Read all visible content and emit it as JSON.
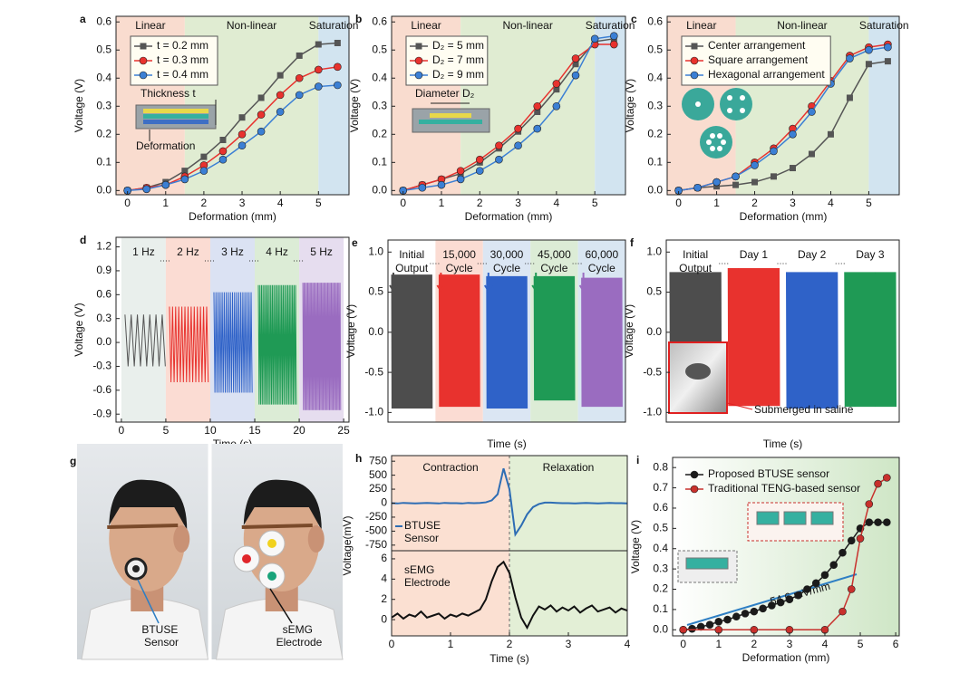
{
  "chart_data": [
    {
      "type": "line",
      "panel": "a",
      "xlabel": "Deformation (mm)",
      "ylabel": "Voltage (V)",
      "xlim": [
        -0.3,
        5.8
      ],
      "xticks": [
        0,
        1,
        2,
        3,
        4,
        5
      ],
      "ylim": [
        -0.015,
        0.62
      ],
      "yticks": [
        {
          "value": 0,
          "label": "0.0"
        },
        0.1,
        0.2,
        0.3,
        0.4,
        0.5,
        0.6
      ],
      "regions": [
        {
          "label": "Linear",
          "range": [
            -0.3,
            1.5
          ],
          "color": "#f9dccf",
          "label_color": "#e8533a"
        },
        {
          "label": "Non-linear",
          "range": [
            1.5,
            5
          ],
          "color": "#e0ecd2",
          "label_color": "#3f8a2a"
        },
        {
          "label": "Saturation",
          "range": [
            5,
            5.8
          ],
          "color": "#d2e4f0",
          "label_color": "#2f6fb0"
        }
      ],
      "legend": "upper left",
      "x": [
        0,
        0.5,
        1,
        1.5,
        2,
        2.5,
        3,
        3.5,
        4,
        4.5,
        5,
        5.5
      ],
      "series": [
        {
          "name": "t = 0.2 mm",
          "color": "#555555",
          "marker": "square",
          "values": [
            0,
            0.01,
            0.03,
            0.07,
            0.12,
            0.18,
            0.26,
            0.33,
            0.41,
            0.48,
            0.52,
            0.525
          ]
        },
        {
          "name": "t = 0.3 mm",
          "color": "#e8322e",
          "marker": "circle",
          "values": [
            0,
            0.01,
            0.02,
            0.05,
            0.09,
            0.14,
            0.2,
            0.27,
            0.34,
            0.4,
            0.43,
            0.44
          ]
        },
        {
          "name": "t = 0.4 mm",
          "color": "#3b7fd4",
          "marker": "circle",
          "values": [
            0,
            0.005,
            0.02,
            0.04,
            0.07,
            0.11,
            0.16,
            0.21,
            0.28,
            0.34,
            0.37,
            0.375
          ]
        }
      ],
      "annotations": [
        "Thickness t",
        "Deformation"
      ]
    },
    {
      "type": "line",
      "panel": "b",
      "xlabel": "Deformation (mm)",
      "ylabel": "Voltage (V)",
      "xlim": [
        -0.3,
        5.8
      ],
      "xticks": [
        0,
        1,
        2,
        3,
        4,
        5
      ],
      "ylim": [
        -0.015,
        0.62
      ],
      "yticks": [
        {
          "value": 0,
          "label": "0.0"
        },
        0.1,
        0.2,
        0.3,
        0.4,
        0.5,
        0.6
      ],
      "regions": [
        {
          "label": "Linear",
          "range": [
            -0.3,
            1.5
          ],
          "color": "#f9dccf",
          "label_color": "#e8533a"
        },
        {
          "label": "Non-linear",
          "range": [
            1.5,
            5
          ],
          "color": "#e0ecd2",
          "label_color": "#3f8a2a"
        },
        {
          "label": "Saturation",
          "range": [
            5,
            5.8
          ],
          "color": "#d2e4f0",
          "label_color": "#2f6fb0"
        }
      ],
      "legend": "upper left",
      "x": [
        0,
        0.5,
        1,
        1.5,
        2,
        2.5,
        3,
        3.5,
        4,
        4.5,
        5,
        5.5
      ],
      "series": [
        {
          "name": "D₂ = 5 mm",
          "color": "#555555",
          "marker": "square",
          "values": [
            0,
            0.02,
            0.04,
            0.06,
            0.1,
            0.15,
            0.21,
            0.28,
            0.36,
            0.45,
            0.53,
            0.54
          ]
        },
        {
          "name": "D₂ = 7 mm",
          "color": "#e8322e",
          "marker": "circle",
          "values": [
            0,
            0.02,
            0.04,
            0.07,
            0.11,
            0.16,
            0.22,
            0.3,
            0.38,
            0.47,
            0.52,
            0.52
          ]
        },
        {
          "name": "D₂ = 9 mm",
          "color": "#3b7fd4",
          "marker": "circle",
          "values": [
            0,
            0.01,
            0.02,
            0.04,
            0.07,
            0.11,
            0.16,
            0.22,
            0.3,
            0.41,
            0.54,
            0.55
          ]
        }
      ],
      "annotations": [
        "Diameter D₂"
      ]
    },
    {
      "type": "line",
      "panel": "c",
      "xlabel": "Deformation (mm)",
      "ylabel": "Voltage (V)",
      "xlim": [
        -0.3,
        5.8
      ],
      "xticks": [
        0,
        1,
        2,
        3,
        4,
        5
      ],
      "ylim": [
        -0.015,
        0.62
      ],
      "yticks": [
        {
          "value": 0,
          "label": "0.0"
        },
        0.1,
        0.2,
        0.3,
        0.4,
        0.5,
        0.6
      ],
      "regions": [
        {
          "label": "Linear",
          "range": [
            -0.3,
            1.5
          ],
          "color": "#f9dccf",
          "label_color": "#e8533a"
        },
        {
          "label": "Non-linear",
          "range": [
            1.5,
            5
          ],
          "color": "#e0ecd2",
          "label_color": "#3f8a2a"
        },
        {
          "label": "Saturation",
          "range": [
            5,
            5.8
          ],
          "color": "#d2e4f0",
          "label_color": "#2f6fb0"
        }
      ],
      "legend": "upper left",
      "x": [
        0,
        0.5,
        1,
        1.5,
        2,
        2.5,
        3,
        3.5,
        4,
        4.5,
        5,
        5.5
      ],
      "series": [
        {
          "name": "Center arrangement",
          "color": "#555555",
          "marker": "square",
          "values": [
            0,
            0.01,
            0.015,
            0.02,
            0.03,
            0.05,
            0.08,
            0.13,
            0.2,
            0.33,
            0.45,
            0.46
          ]
        },
        {
          "name": "Square arrangement",
          "color": "#e8322e",
          "marker": "circle",
          "values": [
            0,
            0.01,
            0.03,
            0.05,
            0.1,
            0.15,
            0.22,
            0.3,
            0.39,
            0.48,
            0.51,
            0.52
          ]
        },
        {
          "name": "Hexagonal arrangement",
          "color": "#3b7fd4",
          "marker": "circle",
          "values": [
            0,
            0.01,
            0.03,
            0.05,
            0.09,
            0.14,
            0.2,
            0.28,
            0.38,
            0.47,
            0.5,
            0.51
          ]
        }
      ]
    },
    {
      "type": "signal",
      "panel": "d",
      "xlabel": "Time (s)",
      "ylabel": "Voltage (V)",
      "xlim": [
        -0.6,
        25.6
      ],
      "xticks": [
        0,
        5,
        10,
        15,
        20,
        25
      ],
      "ylim": [
        -1.0,
        1.32
      ],
      "yticks": [
        -0.9,
        -0.6,
        -0.3,
        {
          "value": 0,
          "label": "0.0"
        },
        0.3,
        0.6,
        0.9,
        1.2
      ],
      "segments": [
        {
          "label": [
            "1 Hz"
          ],
          "range": [
            0,
            5
          ],
          "color": "#555555",
          "label_color": "#555555",
          "background": "#e9efec",
          "max": 0.35,
          "min": -0.3
        },
        {
          "label": [
            "2 Hz"
          ],
          "range": [
            5,
            10
          ],
          "color": "#e8322e",
          "label_color": "#e8322e",
          "background": "#fbdcd3",
          "max": 0.45,
          "min": -0.5
        },
        {
          "label": [
            "3 Hz"
          ],
          "range": [
            10,
            15
          ],
          "color": "#2f62c8",
          "label_color": "#2f62c8",
          "background": "#dbe2f3",
          "max": 0.63,
          "min": -0.63
        },
        {
          "label": [
            "4 Hz"
          ],
          "range": [
            15,
            20
          ],
          "color": "#1f9a55",
          "label_color": "#1f9a55",
          "background": "#dcecd6",
          "max": 0.72,
          "min": -0.78
        },
        {
          "label": [
            "5 Hz"
          ],
          "range": [
            20,
            25
          ],
          "color": "#9a6cc0",
          "label_color": "#9a6cc0",
          "background": "#e6ddef",
          "max": 0.75,
          "min": -0.85
        }
      ]
    },
    {
      "type": "signal",
      "panel": "e",
      "xlabel": "Time (s)",
      "ylabel": "Voltage (V)",
      "ylim": [
        -1.12,
        1.15
      ],
      "yticks": [
        {
          "value": -1,
          "label": "-1.0"
        },
        -0.5,
        {
          "value": 0,
          "label": "0.0"
        },
        0.5,
        {
          "value": 1,
          "label": "1.0"
        }
      ],
      "segments": [
        {
          "label": [
            "Initial",
            "Output"
          ],
          "color": "#4d4d4d",
          "label_color": "#222222",
          "max": 0.72,
          "min": -0.95
        },
        {
          "label": [
            "15,000",
            "Cycle"
          ],
          "color": "#e8322e",
          "label_color": "#e8322e",
          "background": "#fbdcd3",
          "max": 0.72,
          "min": -0.93
        },
        {
          "label": [
            "30,000",
            "Cycle"
          ],
          "color": "#2f62c8",
          "label_color": "#2f62c8",
          "background": "#dbe6f3",
          "max": 0.7,
          "min": -0.95
        },
        {
          "label": [
            "45,000",
            "Cycle"
          ],
          "color": "#1f9a55",
          "label_color": "#1f9a55",
          "background": "#dcecd6",
          "max": 0.7,
          "min": -0.85
        },
        {
          "label": [
            "60,000",
            "Cycle"
          ],
          "color": "#9a6cc0",
          "label_color": "#9a6cc0",
          "background": "#d9e6f2",
          "max": 0.68,
          "min": -0.93
        }
      ]
    },
    {
      "type": "signal",
      "panel": "f",
      "xlabel": "Time (s)",
      "ylabel": "Voltage (V)",
      "ylim": [
        -1.12,
        1.15
      ],
      "yticks": [
        {
          "value": -1,
          "label": "-1.0"
        },
        -0.5,
        {
          "value": 0,
          "label": "0.0"
        },
        0.5,
        {
          "value": 1,
          "label": "1.0"
        }
      ],
      "segments": [
        {
          "label": [
            "Initial",
            "Output"
          ],
          "color": "#4d4d4d",
          "label_color": "#222222",
          "max": 0.75,
          "min": -0.97
        },
        {
          "label": [
            "Day 1"
          ],
          "color": "#e8322e",
          "label_color": "#e8322e",
          "max": 0.8,
          "min": -0.92
        },
        {
          "label": [
            "Day 2"
          ],
          "color": "#2f62c8",
          "label_color": "#2f62c8",
          "max": 0.75,
          "min": -0.95
        },
        {
          "label": [
            "Day 3"
          ],
          "color": "#1f9a55",
          "label_color": "#1f9a55",
          "max": 0.75,
          "min": -0.93
        }
      ],
      "annotations": [
        "Submerged in saline"
      ]
    },
    {
      "type": "photo",
      "panel": "g",
      "labels": [
        "BTUSE Sensor",
        "sEMG Electrode"
      ]
    },
    {
      "type": "dual",
      "panel": "h",
      "xlabel": "Time (s)",
      "ylabel": "Voltage(mV)",
      "xlim": [
        0,
        4
      ],
      "xticks": [
        0,
        1,
        2,
        3,
        4
      ],
      "divider": 2,
      "regions": [
        {
          "label": "Contraction",
          "range": [
            0,
            2
          ],
          "color": "#fbe0d2"
        },
        {
          "label": "Relaxation",
          "range": [
            2,
            4
          ],
          "color": "#e3efd6"
        }
      ],
      "x": [
        0,
        0.1,
        0.2,
        0.3,
        0.4,
        0.5,
        0.6,
        0.7,
        0.8,
        0.9,
        1,
        1.1,
        1.2,
        1.3,
        1.4,
        1.5,
        1.6,
        1.7,
        1.8,
        1.9,
        2,
        2.1,
        2.2,
        2.3,
        2.4,
        2.5,
        2.6,
        2.7,
        2.8,
        2.9,
        3,
        3.1,
        3.2,
        3.3,
        3.4,
        3.5,
        3.6,
        3.7,
        3.8,
        3.9,
        4
      ],
      "panels": [
        {
          "ylim": [
            -850,
            850
          ],
          "yticks": [
            -750,
            -500,
            -250,
            0,
            250,
            500,
            750
          ],
          "series": [
            {
              "name": "BTUSE Sensor",
              "color": "#2e6db4",
              "values": [
                0,
                -5,
                5,
                0,
                -5,
                0,
                5,
                0,
                -5,
                5,
                0,
                0,
                -5,
                5,
                0,
                5,
                15,
                50,
                160,
                620,
                250,
                -560,
                -400,
                -200,
                -70,
                -15,
                10,
                10,
                5,
                0,
                0,
                -5,
                0,
                5,
                0,
                -5,
                0,
                5,
                0,
                0,
                -5
              ]
            }
          ]
        },
        {
          "ylim": [
            -1.6,
            6.8
          ],
          "yticks": [
            0,
            2,
            4,
            6
          ],
          "series": [
            {
              "name": "sEMG Electrode",
              "color": "#111111",
              "values": [
                0.2,
                0.6,
                0.1,
                0.5,
                0.3,
                0.8,
                0.2,
                0.4,
                0.6,
                0.1,
                0.5,
                0.3,
                0.6,
                0.4,
                0.7,
                1.0,
                2.0,
                3.8,
                5.2,
                5.7,
                4.6,
                2.2,
                0.2,
                -0.8,
                0.4,
                1.3,
                1.0,
                1.4,
                0.8,
                1.2,
                0.9,
                1.3,
                0.7,
                1.1,
                1.4,
                0.8,
                1.0,
                1.2,
                0.7,
                1.1,
                0.9
              ]
            }
          ]
        }
      ]
    },
    {
      "type": "line",
      "panel": "i",
      "xlabel": "Deformation (mm)",
      "ylabel": "Voltage (V)",
      "xlim": [
        -0.3,
        6.1
      ],
      "xticks": [
        0,
        1,
        2,
        3,
        4,
        5,
        6
      ],
      "ylim": [
        -0.03,
        0.85
      ],
      "yticks": [
        {
          "value": 0,
          "label": "0.0"
        },
        0.1,
        0.2,
        0.3,
        0.4,
        0.5,
        0.6,
        0.7,
        0.8
      ],
      "legend": "upper left",
      "series": [
        {
          "name": "Proposed BTUSE sensor",
          "color": "#1a1a1a",
          "marker": "circle",
          "x": [
            0,
            0.25,
            0.5,
            0.75,
            1,
            1.25,
            1.5,
            1.75,
            2,
            2.25,
            2.5,
            2.75,
            3,
            3.25,
            3.5,
            3.75,
            4,
            4.25,
            4.5,
            4.75,
            5,
            5.25,
            5.5,
            5.75
          ],
          "values": [
            0,
            0.005,
            0.015,
            0.025,
            0.04,
            0.05,
            0.065,
            0.08,
            0.09,
            0.105,
            0.12,
            0.135,
            0.15,
            0.17,
            0.2,
            0.23,
            0.27,
            0.32,
            0.38,
            0.44,
            0.5,
            0.53,
            0.53,
            0.53
          ]
        },
        {
          "name": "Traditional TENG-based sensor",
          "color": "#c8302c",
          "marker": "circle",
          "x": [
            0,
            1,
            2,
            3,
            4,
            4.5,
            4.75,
            5,
            5.25,
            5.5,
            5.75
          ],
          "values": [
            0,
            0,
            0,
            0,
            0,
            0.09,
            0.2,
            0.45,
            0.62,
            0.72,
            0.75
          ]
        }
      ],
      "annotations": [
        "54.6 mV/mm"
      ]
    }
  ]
}
